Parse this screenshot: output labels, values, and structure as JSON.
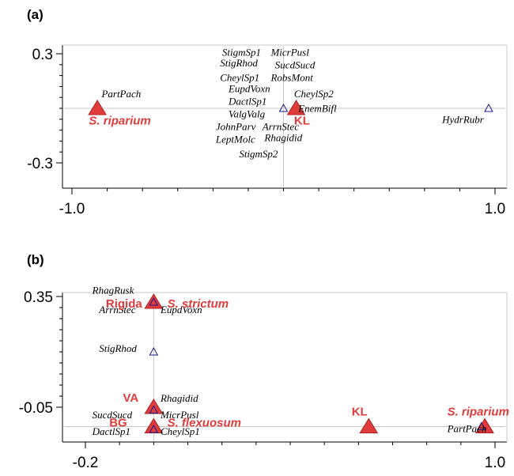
{
  "colors": {
    "env": "#e03c3c",
    "species": "#1a1a8c",
    "axis": "#000000",
    "refline": "#c8c8c8"
  },
  "chart_data": [
    {
      "type": "scatter",
      "panel": "(a)",
      "xlim": [
        -1.0,
        1.0
      ],
      "ylim": [
        -0.3,
        0.3
      ],
      "x_ticks": [
        {
          "value": -1.0,
          "label": "-1.0"
        },
        {
          "value": 1.0,
          "label": "1.0"
        }
      ],
      "y_ticks": [
        {
          "value": 0.3,
          "label": "0.3"
        },
        {
          "value": -0.3,
          "label": "-0.3"
        }
      ],
      "env_points": [
        {
          "label": "S. riparium",
          "italic": true,
          "x": -0.88,
          "y": 0.0
        },
        {
          "label": "KL",
          "italic": false,
          "x": 0.06,
          "y": 0.0
        }
      ],
      "species_points": [
        {
          "x": 0.0,
          "y": 0.0
        },
        {
          "x": 0.97,
          "y": 0.0
        }
      ],
      "species_labels": [
        {
          "text": "StigmSp1",
          "x": -0.29,
          "y": 0.29
        },
        {
          "text": "MicrPusl",
          "x": -0.06,
          "y": 0.29
        },
        {
          "text": "StigRhod",
          "x": -0.3,
          "y": 0.23
        },
        {
          "text": "SucdSucd",
          "x": -0.04,
          "y": 0.22
        },
        {
          "text": "CheylSp1",
          "x": -0.3,
          "y": 0.15
        },
        {
          "text": "RobsMont",
          "x": -0.06,
          "y": 0.15
        },
        {
          "text": "EupdVoxn",
          "x": -0.26,
          "y": 0.09
        },
        {
          "text": "CheylSp2",
          "x": 0.05,
          "y": 0.06
        },
        {
          "text": "PartPach",
          "x": -0.86,
          "y": 0.06
        },
        {
          "text": "DactlSp1",
          "x": -0.26,
          "y": 0.02
        },
        {
          "text": "EnemBifl",
          "x": 0.07,
          "y": -0.02
        },
        {
          "text": "ValgValg",
          "x": -0.26,
          "y": -0.05
        },
        {
          "text": "HydrRubr",
          "x": 0.75,
          "y": -0.08
        },
        {
          "text": "JohnParv",
          "x": -0.32,
          "y": -0.12
        },
        {
          "text": "ArrnStec",
          "x": -0.1,
          "y": -0.12
        },
        {
          "text": "LeptMolc",
          "x": -0.32,
          "y": -0.19
        },
        {
          "text": "Rhagidid",
          "x": -0.09,
          "y": -0.18
        },
        {
          "text": "StigmSp2",
          "x": -0.21,
          "y": -0.27
        }
      ],
      "env_label_positions": [
        {
          "text": "S. riparium",
          "x": -0.92,
          "y": -0.09,
          "italic": true
        },
        {
          "text": "KL",
          "x": 0.05,
          "y": -0.09,
          "italic": false
        }
      ]
    },
    {
      "type": "scatter",
      "panel": "(b)",
      "xlim": [
        -0.2,
        1.0
      ],
      "ylim": [
        -0.05,
        0.35
      ],
      "x_ticks": [
        {
          "value": -0.2,
          "label": "-0.2"
        },
        {
          "value": 1.0,
          "label": "1.0"
        }
      ],
      "y_ticks": [
        {
          "value": 0.35,
          "label": "0.35"
        },
        {
          "value": -0.05,
          "label": "-0.05"
        }
      ],
      "env_points": [
        {
          "label": "S. strictum",
          "italic": true,
          "x": 0.0,
          "y": 0.33
        },
        {
          "label": "VA",
          "italic": false,
          "x": 0.0,
          "y": -0.05
        },
        {
          "label": "BG",
          "italic": false,
          "x": 0.0,
          "y": -0.12
        },
        {
          "label": "KL",
          "italic": false,
          "x": 0.63,
          "y": -0.12
        },
        {
          "label": "S. riparium",
          "italic": true,
          "x": 0.97,
          "y": -0.12
        }
      ],
      "species_points": [
        {
          "x": 0.0,
          "y": 0.33
        },
        {
          "x": 0.0,
          "y": 0.15
        },
        {
          "x": 0.0,
          "y": -0.06
        },
        {
          "x": 0.0,
          "y": -0.13
        },
        {
          "x": 0.96,
          "y": -0.12
        }
      ],
      "species_labels": [
        {
          "text": "RhagRusk",
          "x": -0.18,
          "y": 0.36
        },
        {
          "text": "ArrnStec",
          "x": -0.16,
          "y": 0.29
        },
        {
          "text": "EupdVoxn",
          "x": 0.02,
          "y": 0.29
        },
        {
          "text": "StigRhod",
          "x": -0.16,
          "y": 0.15
        },
        {
          "text": "Rhagidid",
          "x": 0.02,
          "y": -0.03
        },
        {
          "text": "SucdSucd",
          "x": -0.18,
          "y": -0.09
        },
        {
          "text": "MicrPusl",
          "x": 0.02,
          "y": -0.09
        },
        {
          "text": "DactlSp1",
          "x": -0.18,
          "y": -0.15
        },
        {
          "text": "CheylSp1",
          "x": 0.02,
          "y": -0.15
        },
        {
          "text": "PartPach",
          "x": 0.86,
          "y": -0.14
        }
      ],
      "env_label_positions": [
        {
          "text": "Rigida",
          "x": -0.14,
          "y": 0.31,
          "italic": false
        },
        {
          "text": "S. strictum",
          "x": 0.04,
          "y": 0.31,
          "italic": true
        },
        {
          "text": "VA",
          "x": -0.09,
          "y": -0.03,
          "italic": false
        },
        {
          "text": "BG",
          "x": -0.13,
          "y": -0.12,
          "italic": false
        },
        {
          "text": "S. flexuosum",
          "x": 0.04,
          "y": -0.12,
          "italic": true
        },
        {
          "text": "KL",
          "x": 0.58,
          "y": -0.08,
          "italic": false
        },
        {
          "text": "S. riparium",
          "x": 0.86,
          "y": -0.08,
          "italic": true
        }
      ]
    }
  ]
}
